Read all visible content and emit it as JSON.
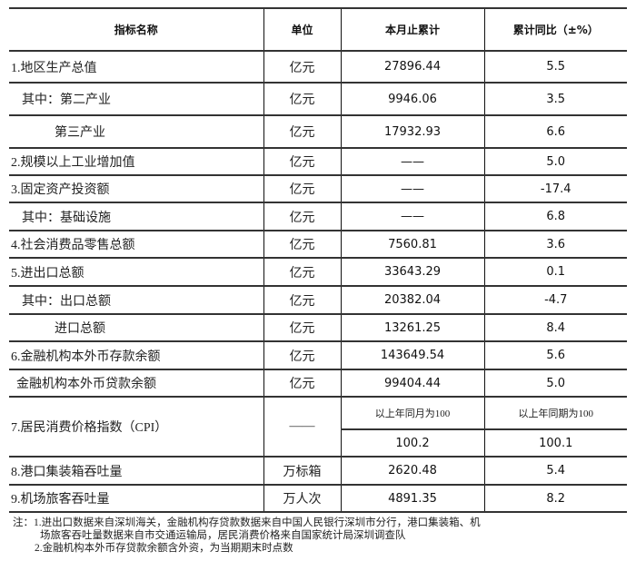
{
  "header": {
    "name": "指标名称",
    "unit": "单位",
    "cumulative": "本月止累计",
    "yoy": "累计同比（±%）"
  },
  "rows": [
    {
      "name": "1.地区生产总值",
      "unit": "亿元",
      "value": "27896.44",
      "yoy": "5.5"
    },
    {
      "name": "其中：第二产业",
      "unit": "亿元",
      "value": "9946.06",
      "yoy": "3.5"
    },
    {
      "name": "第三产业",
      "unit": "亿元",
      "value": "17932.93",
      "yoy": "6.6"
    },
    {
      "name": "2.规模以上工业增加值",
      "unit": "亿元",
      "value": "——",
      "yoy": "5.0"
    },
    {
      "name": "3.固定资产投资额",
      "unit": "亿元",
      "value": "——",
      "yoy": "-17.4"
    },
    {
      "name": "其中：基础设施",
      "unit": "亿元",
      "value": "——",
      "yoy": "6.8"
    },
    {
      "name": "4.社会消费品零售总额",
      "unit": "亿元",
      "value": "7560.81",
      "yoy": "3.6"
    },
    {
      "name": "5.进出口总额",
      "unit": "亿元",
      "value": "33643.29",
      "yoy": "0.1"
    },
    {
      "name": "其中：出口总额",
      "unit": "亿元",
      "value": "20382.04",
      "yoy": "-4.7"
    },
    {
      "name": "进口总额",
      "unit": "亿元",
      "value": "13261.25",
      "yoy": "8.4"
    },
    {
      "name": "6.金融机构本外币存款余额",
      "unit": "亿元",
      "value": "143649.54",
      "yoy": "5.6"
    },
    {
      "name": "金融机构本外币贷款余额",
      "unit": "亿元",
      "value": "99404.44",
      "yoy": "5.0"
    }
  ],
  "cpi": {
    "name": "7.居民消费价格指数（CPI）",
    "unit": "——",
    "sub_month": "以上年同月为100",
    "sub_period": "以上年同期为100",
    "value_month": "100.2",
    "value_period": "100.1"
  },
  "rows_after": [
    {
      "name": "8.港口集装箱吞吐量",
      "unit": "万标箱",
      "value": "2620.48",
      "yoy": "5.4"
    },
    {
      "name": "9.机场旅客吞吐量",
      "unit": "万人次",
      "value": "4891.35",
      "yoy": "8.2"
    }
  ],
  "notes": [
    "注：1.进出口数据来自深圳海关，金融机构存贷款数据来自中国人民银行深圳市分行，港口集装箱、机",
    "场旅客吞吐量数据来自市交通运输局，居民消费价格来自国家统计局深圳调查队",
    "2.金融机构本外币存贷款余额含外资，为当期期末时点数"
  ]
}
